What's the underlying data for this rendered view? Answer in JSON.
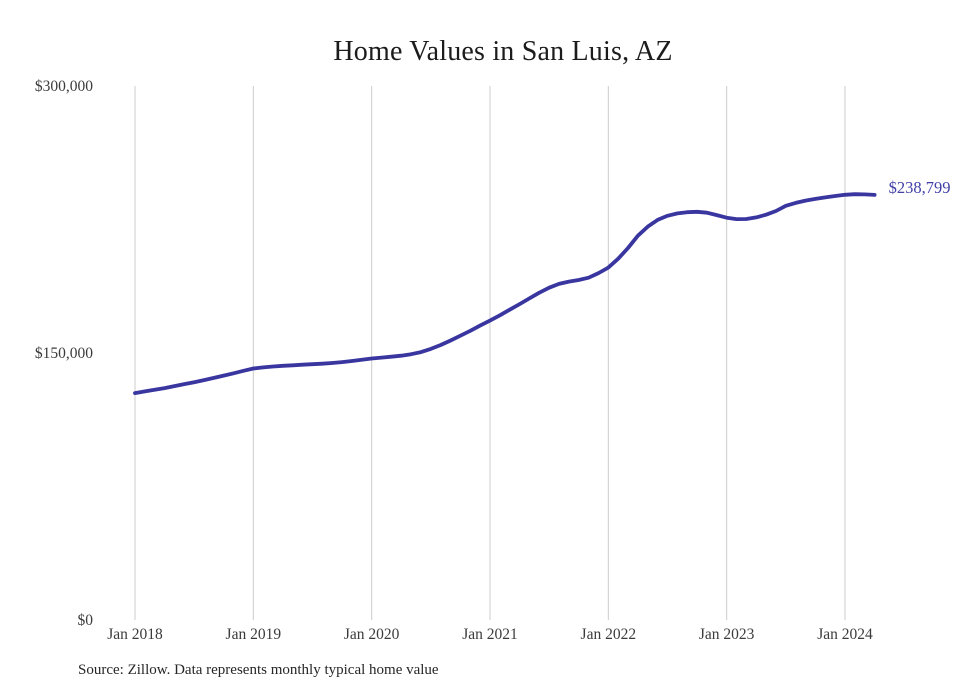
{
  "source_note": "Source: Zillow. Data represents monthly typical home value",
  "colors": {
    "line": "#3a36a0",
    "grid": "#cccccc",
    "axis_text": "#3b3b3b",
    "title_text": "#1c1c1c",
    "end_label": "#4340a8"
  },
  "chart_data": {
    "type": "line",
    "title": "Home Values in San Luis, AZ",
    "xlabel": "",
    "ylabel": "",
    "grid": "vertical-only",
    "legend": "none",
    "ylim": [
      0,
      300000
    ],
    "yticks": [
      {
        "value": 0,
        "label": "$0"
      },
      {
        "value": 150000,
        "label": "$150,000"
      },
      {
        "value": 300000,
        "label": "$300,000"
      }
    ],
    "xticks": [
      {
        "index": 0,
        "label": "Jan 2018"
      },
      {
        "index": 12,
        "label": "Jan 2019"
      },
      {
        "index": 24,
        "label": "Jan 2020"
      },
      {
        "index": 36,
        "label": "Jan 2021"
      },
      {
        "index": 48,
        "label": "Jan 2022"
      },
      {
        "index": 60,
        "label": "Jan 2023"
      },
      {
        "index": 72,
        "label": "Jan 2024"
      }
    ],
    "end_annotation": "$238,799",
    "x": [
      "2018-01",
      "2018-02",
      "2018-03",
      "2018-04",
      "2018-05",
      "2018-06",
      "2018-07",
      "2018-08",
      "2018-09",
      "2018-10",
      "2018-11",
      "2018-12",
      "2019-01",
      "2019-02",
      "2019-03",
      "2019-04",
      "2019-05",
      "2019-06",
      "2019-07",
      "2019-08",
      "2019-09",
      "2019-10",
      "2019-11",
      "2019-12",
      "2020-01",
      "2020-02",
      "2020-03",
      "2020-04",
      "2020-05",
      "2020-06",
      "2020-07",
      "2020-08",
      "2020-09",
      "2020-10",
      "2020-11",
      "2020-12",
      "2021-01",
      "2021-02",
      "2021-03",
      "2021-04",
      "2021-05",
      "2021-06",
      "2021-07",
      "2021-08",
      "2021-09",
      "2021-10",
      "2021-11",
      "2021-12",
      "2022-01",
      "2022-02",
      "2022-03",
      "2022-04",
      "2022-05",
      "2022-06",
      "2022-07",
      "2022-08",
      "2022-09",
      "2022-10",
      "2022-11",
      "2022-12",
      "2023-01",
      "2023-02",
      "2023-03",
      "2023-04",
      "2023-05",
      "2023-06",
      "2023-07",
      "2023-08",
      "2023-09",
      "2023-10",
      "2023-11",
      "2023-12",
      "2024-01",
      "2024-02",
      "2024-03",
      "2024-04"
    ],
    "series": [
      {
        "name": "Typical home value",
        "values": [
          127500,
          128400,
          129300,
          130300,
          131400,
          132500,
          133600,
          134800,
          136000,
          137300,
          138600,
          140000,
          141300,
          141900,
          142400,
          142800,
          143100,
          143400,
          143700,
          144000,
          144400,
          144900,
          145500,
          146200,
          146900,
          147400,
          147900,
          148500,
          149300,
          150500,
          152300,
          154500,
          157000,
          159700,
          162500,
          165400,
          168200,
          171200,
          174300,
          177500,
          180700,
          183900,
          186700,
          188800,
          190100,
          191000,
          192300,
          194900,
          198000,
          203000,
          209000,
          215900,
          221000,
          224800,
          227100,
          228400,
          229100,
          229300,
          228800,
          227500,
          226000,
          225200,
          225300,
          226200,
          227700,
          229800,
          232700,
          234300,
          235600,
          236600,
          237400,
          238200,
          238900,
          239200,
          239100,
          238799
        ]
      }
    ]
  }
}
